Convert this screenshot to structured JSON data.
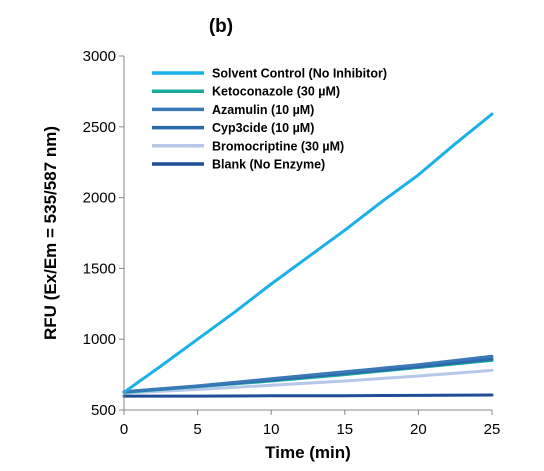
{
  "chart_data": {
    "type": "line",
    "title": "(b)",
    "xlabel": "Time (min)",
    "ylabel": "RFU (Ex/Em = 535/587 nm)",
    "xlim": [
      0,
      25
    ],
    "ylim": [
      500,
      3000
    ],
    "x_ticks": [
      "0",
      "5",
      "10",
      "15",
      "20",
      "25"
    ],
    "y_ticks": [
      "500",
      "1000",
      "1500",
      "2000",
      "2500",
      "3000"
    ],
    "grid": false,
    "legend_position": "top-left",
    "series": [
      {
        "name": "Solvent Control (No Inhibitor)",
        "color": "#1ab0e8",
        "x": [
          0,
          2.5,
          5,
          7.5,
          10,
          12.5,
          15,
          17.5,
          20,
          22.5,
          25
        ],
        "y": [
          625,
          810,
          1000,
          1190,
          1390,
          1580,
          1770,
          1970,
          2160,
          2380,
          2590
        ]
      },
      {
        "name": "Ketoconazole (30 µM)",
        "color": "#1aab9b",
        "x": [
          0,
          5,
          10,
          15,
          20,
          25
        ],
        "y": [
          625,
          665,
          705,
          750,
          800,
          850
        ]
      },
      {
        "name": "Azamulin (10 µM)",
        "color": "#3a78b8",
        "x": [
          0,
          5,
          10,
          15,
          20,
          25
        ],
        "y": [
          630,
          670,
          720,
          770,
          820,
          880
        ]
      },
      {
        "name": "Cyp3cide (10 µM)",
        "color": "#2a6aac",
        "x": [
          0,
          5,
          10,
          15,
          20,
          25
        ],
        "y": [
          628,
          668,
          712,
          758,
          805,
          860
        ]
      },
      {
        "name": "Bromocriptine (30 µM)",
        "color": "#b6c8ea",
        "x": [
          0,
          5,
          10,
          15,
          20,
          25
        ],
        "y": [
          620,
          645,
          675,
          705,
          740,
          780
        ]
      },
      {
        "name": "Blank (No Enzyme)",
        "color": "#1f4e96",
        "x": [
          0,
          5,
          10,
          15,
          20,
          25
        ],
        "y": [
          598,
          598,
          600,
          601,
          603,
          606
        ]
      }
    ]
  }
}
